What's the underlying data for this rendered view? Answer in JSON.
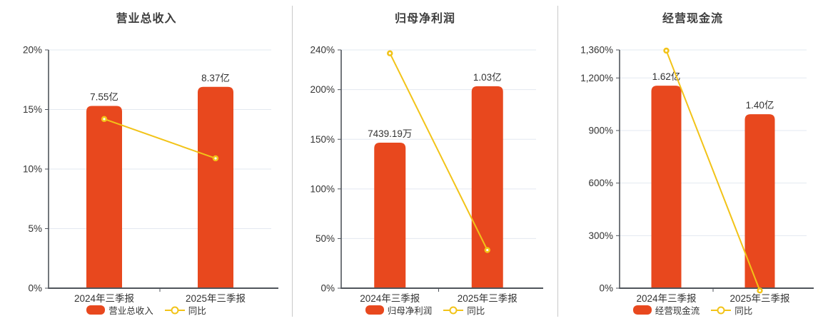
{
  "colors": {
    "bar": "#e8481e",
    "line": "#f2c318",
    "grid": "#e3e8f0",
    "axis": "#50555c",
    "text": "#333333",
    "title": "#3d3d3d",
    "divider": "#c9c9c9",
    "marker_center": "#ffffff"
  },
  "chart_data": [
    {
      "type": "bar",
      "title": "营业总收入",
      "categories": [
        "2024年三季报",
        "2025年三季报"
      ],
      "bars": {
        "name": "营业总收入",
        "labels": [
          "7.55亿",
          "8.37亿"
        ],
        "plotted_pct": [
          15.3,
          16.9
        ]
      },
      "line": {
        "name": "同比",
        "values_pct": [
          14.2,
          10.9
        ]
      },
      "y_axis": {
        "min": 0,
        "max": 20,
        "ticks": [
          0,
          5,
          10,
          15,
          20
        ],
        "tick_labels": [
          "0%",
          "5%",
          "10%",
          "15%",
          "20%"
        ]
      },
      "legend_position": "bottom"
    },
    {
      "type": "bar",
      "title": "归母净利润",
      "categories": [
        "2024年三季报",
        "2025年三季报"
      ],
      "bars": {
        "name": "归母净利润",
        "labels": [
          "7439.19万",
          "1.03亿"
        ],
        "plotted_pct": [
          146.6,
          203.4
        ]
      },
      "line": {
        "name": "同比",
        "values_pct": [
          236.6,
          38.4
        ]
      },
      "y_axis": {
        "min": 0,
        "max": 240,
        "ticks": [
          0,
          50,
          100,
          150,
          200,
          240
        ],
        "tick_labels": [
          "0%",
          "50%",
          "100%",
          "150%",
          "200%",
          "240%"
        ]
      },
      "legend_position": "bottom"
    },
    {
      "type": "bar",
      "title": "经营现金流",
      "categories": [
        "2024年三季报",
        "2025年三季报"
      ],
      "bars": {
        "name": "经营现金流",
        "labels": [
          "1.62亿",
          "1.40亿"
        ],
        "plotted_pct": [
          1156,
          993
        ]
      },
      "line": {
        "name": "同比",
        "values_pct": [
          1356,
          -13.6
        ]
      },
      "y_axis": {
        "min": 0,
        "max": 1360,
        "ticks": [
          0,
          300,
          600,
          900,
          1200,
          1360
        ],
        "tick_labels": [
          "0%",
          "300%",
          "600%",
          "900%",
          "1,200%",
          "1,360%"
        ]
      },
      "legend_position": "bottom"
    }
  ]
}
